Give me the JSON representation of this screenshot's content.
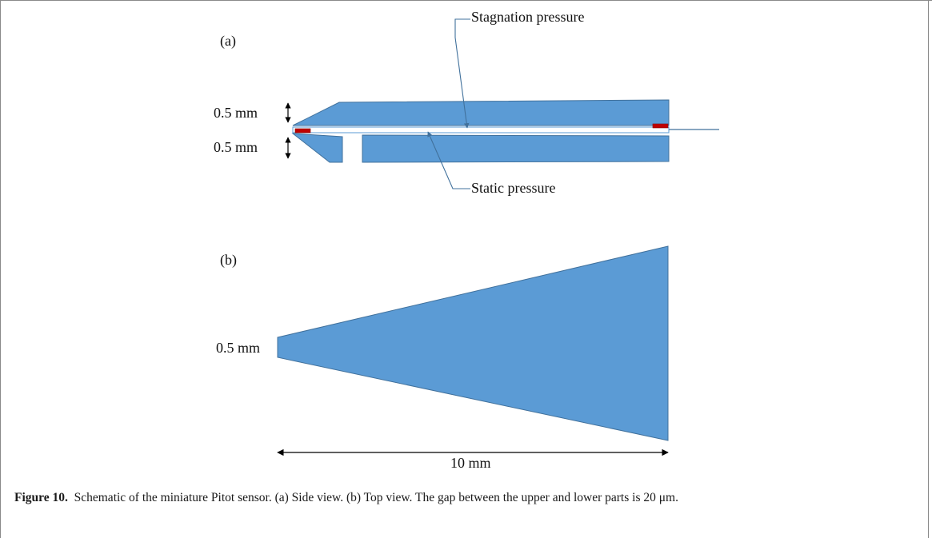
{
  "panel_a": {
    "label": "(a)",
    "upper_thickness": "0.5 mm",
    "lower_thickness": "0.5 mm",
    "stagnation_label": "Stagnation pressure",
    "static_label": "Static pressure"
  },
  "panel_b": {
    "label": "(b)",
    "tip_width": "0.5 mm",
    "length_label": "10 mm"
  },
  "caption": {
    "figure_label": "Figure 10.",
    "text": "Schematic of the miniature Pitot sensor. (a) Side view. (b) Top view. The gap between the upper and lower parts is 20 μm."
  },
  "colors": {
    "body_fill": "#5b9bd5",
    "body_stroke": "#41719c",
    "port_fill": "#c00000",
    "leader_line": "#41719c",
    "dimension_line": "#000000"
  }
}
